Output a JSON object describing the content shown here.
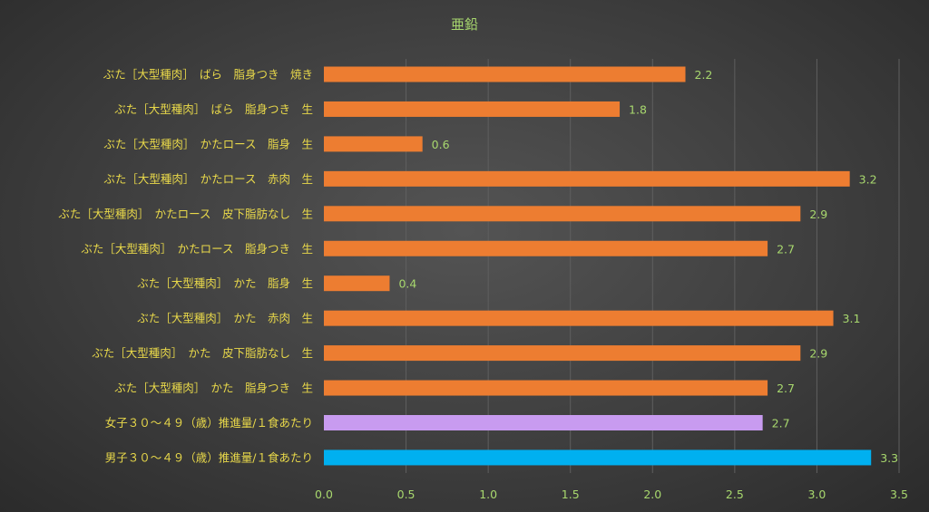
{
  "chart_data": {
    "type": "bar",
    "orientation": "horizontal",
    "title": "亜鉛",
    "xlabel": "",
    "ylabel": "",
    "xlim": [
      0,
      3.5
    ],
    "x_ticks": [
      "0.0",
      "0.5",
      "1.0",
      "1.5",
      "2.0",
      "2.5",
      "3.0",
      "3.5"
    ],
    "grid": true,
    "legend": "none",
    "categories": [
      "ぶた［大型種肉］　ばら　脂身つき　焼き",
      "ぶた［大型種肉］　ばら　脂身つき　生",
      "ぶた［大型種肉］　かたロース　脂身　生",
      "ぶた［大型種肉］　かたロース　赤肉　生",
      "ぶた［大型種肉］　かたロース　皮下脂肪なし　生",
      "ぶた［大型種肉］　かたロース　脂身つき　生",
      "ぶた［大型種肉］　かた　脂身　生",
      "ぶた［大型種肉］　かた　赤肉　生",
      "ぶた［大型種肉］　かた　皮下脂肪なし　生",
      "ぶた［大型種肉］　かた　脂身つき　生",
      "女子３０～４９（歳）推進量/１食あたり",
      "男子３０～４９（歳）推進量/１食あたり"
    ],
    "values": [
      2.2,
      1.8,
      0.6,
      3.2,
      2.9,
      2.7,
      0.4,
      3.1,
      2.9,
      2.7,
      2.67,
      3.33
    ],
    "value_labels": [
      "2.2",
      "1.8",
      "0.6",
      "3.2",
      "2.9",
      "2.7",
      "0.4",
      "3.1",
      "2.9",
      "2.7",
      "2.7",
      "3.3"
    ],
    "bar_colors": [
      "#ed7d31",
      "#ed7d31",
      "#ed7d31",
      "#ed7d31",
      "#ed7d31",
      "#ed7d31",
      "#ed7d31",
      "#ed7d31",
      "#ed7d31",
      "#ed7d31",
      "#c89bf0",
      "#00b0f0"
    ],
    "colors": {
      "background": "#404040",
      "title": "#a8d86e",
      "category_label": "#e8d84a",
      "tick_label": "#a8d86e",
      "data_label": "#a8d86e",
      "gridline": "#5f5f5f"
    }
  }
}
